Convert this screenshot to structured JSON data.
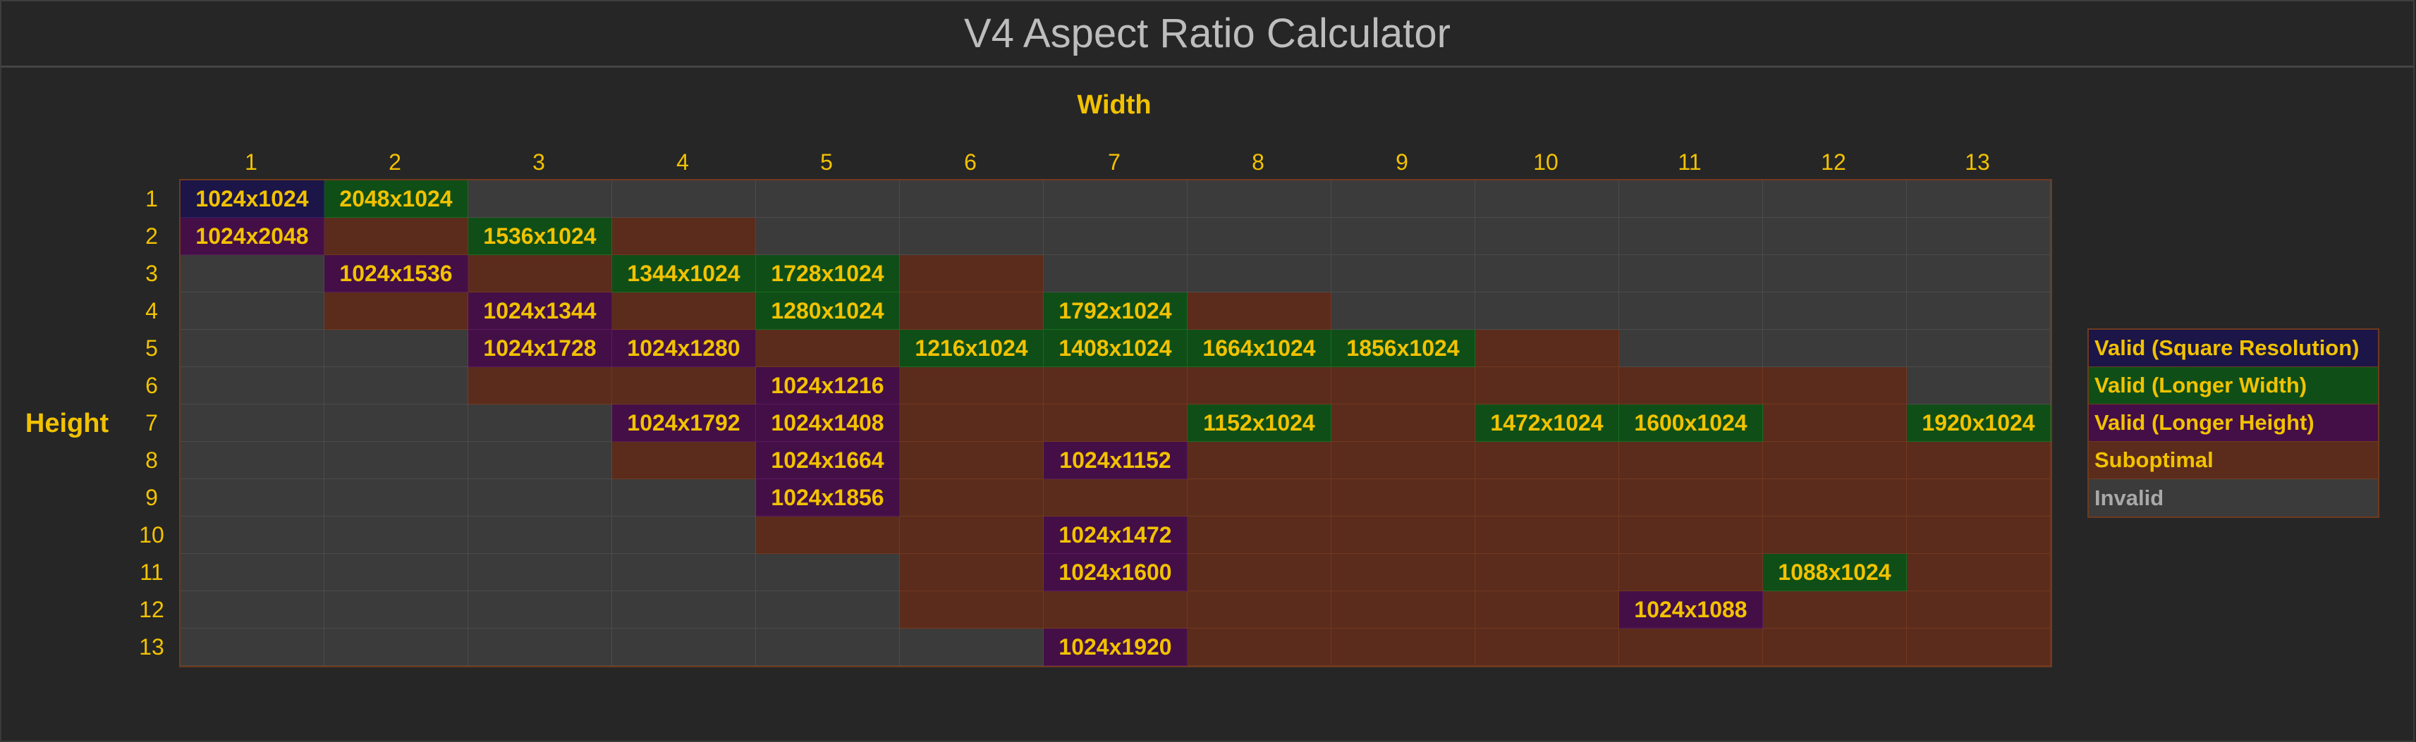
{
  "title": "V4 Aspect Ratio Calculator",
  "axis": {
    "width_label": "Width",
    "height_label": "Height"
  },
  "columns": [
    "1",
    "2",
    "3",
    "4",
    "5",
    "6",
    "7",
    "8",
    "9",
    "10",
    "11",
    "12",
    "13"
  ],
  "rows": [
    "1",
    "2",
    "3",
    "4",
    "5",
    "6",
    "7",
    "8",
    "9",
    "10",
    "11",
    "12",
    "13"
  ],
  "grid": [
    [
      [
        "sq",
        "1024x1024"
      ],
      [
        "lw",
        "2048x1024"
      ],
      [
        "iv",
        ""
      ],
      [
        "iv",
        ""
      ],
      [
        "iv",
        ""
      ],
      [
        "iv",
        ""
      ],
      [
        "iv",
        ""
      ],
      [
        "iv",
        ""
      ],
      [
        "iv",
        ""
      ],
      [
        "iv",
        ""
      ],
      [
        "iv",
        ""
      ],
      [
        "iv",
        ""
      ],
      [
        "iv",
        ""
      ]
    ],
    [
      [
        "lh",
        "1024x2048"
      ],
      [
        "so",
        ""
      ],
      [
        "lw",
        "1536x1024"
      ],
      [
        "so",
        ""
      ],
      [
        "iv",
        ""
      ],
      [
        "iv",
        ""
      ],
      [
        "iv",
        ""
      ],
      [
        "iv",
        ""
      ],
      [
        "iv",
        ""
      ],
      [
        "iv",
        ""
      ],
      [
        "iv",
        ""
      ],
      [
        "iv",
        ""
      ],
      [
        "iv",
        ""
      ]
    ],
    [
      [
        "iv",
        ""
      ],
      [
        "lh",
        "1024x1536"
      ],
      [
        "so",
        ""
      ],
      [
        "lw",
        "1344x1024"
      ],
      [
        "lw",
        "1728x1024"
      ],
      [
        "so",
        ""
      ],
      [
        "iv",
        ""
      ],
      [
        "iv",
        ""
      ],
      [
        "iv",
        ""
      ],
      [
        "iv",
        ""
      ],
      [
        "iv",
        ""
      ],
      [
        "iv",
        ""
      ],
      [
        "iv",
        ""
      ]
    ],
    [
      [
        "iv",
        ""
      ],
      [
        "so",
        ""
      ],
      [
        "lh",
        "1024x1344"
      ],
      [
        "so",
        ""
      ],
      [
        "lw",
        "1280x1024"
      ],
      [
        "so",
        ""
      ],
      [
        "lw",
        "1792x1024"
      ],
      [
        "so",
        ""
      ],
      [
        "iv",
        ""
      ],
      [
        "iv",
        ""
      ],
      [
        "iv",
        ""
      ],
      [
        "iv",
        ""
      ],
      [
        "iv",
        ""
      ]
    ],
    [
      [
        "iv",
        ""
      ],
      [
        "iv",
        ""
      ],
      [
        "lh",
        "1024x1728"
      ],
      [
        "lh",
        "1024x1280"
      ],
      [
        "so",
        ""
      ],
      [
        "lw",
        "1216x1024"
      ],
      [
        "lw",
        "1408x1024"
      ],
      [
        "lw",
        "1664x1024"
      ],
      [
        "lw",
        "1856x1024"
      ],
      [
        "so",
        ""
      ],
      [
        "iv",
        ""
      ],
      [
        "iv",
        ""
      ],
      [
        "iv",
        ""
      ]
    ],
    [
      [
        "iv",
        ""
      ],
      [
        "iv",
        ""
      ],
      [
        "so",
        ""
      ],
      [
        "so",
        ""
      ],
      [
        "lh",
        "1024x1216"
      ],
      [
        "so",
        ""
      ],
      [
        "so",
        ""
      ],
      [
        "so",
        ""
      ],
      [
        "so",
        ""
      ],
      [
        "so",
        ""
      ],
      [
        "so",
        ""
      ],
      [
        "so",
        ""
      ],
      [
        "iv",
        ""
      ]
    ],
    [
      [
        "iv",
        ""
      ],
      [
        "iv",
        ""
      ],
      [
        "iv",
        ""
      ],
      [
        "lh",
        "1024x1792"
      ],
      [
        "lh",
        "1024x1408"
      ],
      [
        "so",
        ""
      ],
      [
        "so",
        ""
      ],
      [
        "lw",
        "1152x1024"
      ],
      [
        "so",
        ""
      ],
      [
        "lw",
        "1472x1024"
      ],
      [
        "lw",
        "1600x1024"
      ],
      [
        "so",
        ""
      ],
      [
        "lw",
        "1920x1024"
      ]
    ],
    [
      [
        "iv",
        ""
      ],
      [
        "iv",
        ""
      ],
      [
        "iv",
        ""
      ],
      [
        "so",
        ""
      ],
      [
        "lh",
        "1024x1664"
      ],
      [
        "so",
        ""
      ],
      [
        "lh",
        "1024x1152"
      ],
      [
        "so",
        ""
      ],
      [
        "so",
        ""
      ],
      [
        "so",
        ""
      ],
      [
        "so",
        ""
      ],
      [
        "so",
        ""
      ],
      [
        "so",
        ""
      ]
    ],
    [
      [
        "iv",
        ""
      ],
      [
        "iv",
        ""
      ],
      [
        "iv",
        ""
      ],
      [
        "iv",
        ""
      ],
      [
        "lh",
        "1024x1856"
      ],
      [
        "so",
        ""
      ],
      [
        "so",
        ""
      ],
      [
        "so",
        ""
      ],
      [
        "so",
        ""
      ],
      [
        "so",
        ""
      ],
      [
        "so",
        ""
      ],
      [
        "so",
        ""
      ],
      [
        "so",
        ""
      ]
    ],
    [
      [
        "iv",
        ""
      ],
      [
        "iv",
        ""
      ],
      [
        "iv",
        ""
      ],
      [
        "iv",
        ""
      ],
      [
        "so",
        ""
      ],
      [
        "so",
        ""
      ],
      [
        "lh",
        "1024x1472"
      ],
      [
        "so",
        ""
      ],
      [
        "so",
        ""
      ],
      [
        "so",
        ""
      ],
      [
        "so",
        ""
      ],
      [
        "so",
        ""
      ],
      [
        "so",
        ""
      ]
    ],
    [
      [
        "iv",
        ""
      ],
      [
        "iv",
        ""
      ],
      [
        "iv",
        ""
      ],
      [
        "iv",
        ""
      ],
      [
        "iv",
        ""
      ],
      [
        "so",
        ""
      ],
      [
        "lh",
        "1024x1600"
      ],
      [
        "so",
        ""
      ],
      [
        "so",
        ""
      ],
      [
        "so",
        ""
      ],
      [
        "so",
        ""
      ],
      [
        "lw",
        "1088x1024"
      ],
      [
        "so",
        ""
      ]
    ],
    [
      [
        "iv",
        ""
      ],
      [
        "iv",
        ""
      ],
      [
        "iv",
        ""
      ],
      [
        "iv",
        ""
      ],
      [
        "iv",
        ""
      ],
      [
        "so",
        ""
      ],
      [
        "so",
        ""
      ],
      [
        "so",
        ""
      ],
      [
        "so",
        ""
      ],
      [
        "so",
        ""
      ],
      [
        "lh",
        "1024x1088"
      ],
      [
        "so",
        ""
      ],
      [
        "so",
        ""
      ]
    ],
    [
      [
        "iv",
        ""
      ],
      [
        "iv",
        ""
      ],
      [
        "iv",
        ""
      ],
      [
        "iv",
        ""
      ],
      [
        "iv",
        ""
      ],
      [
        "iv",
        ""
      ],
      [
        "lh",
        "1024x1920"
      ],
      [
        "so",
        ""
      ],
      [
        "so",
        ""
      ],
      [
        "so",
        ""
      ],
      [
        "so",
        ""
      ],
      [
        "so",
        ""
      ],
      [
        "so",
        ""
      ]
    ]
  ],
  "legend": [
    {
      "key": "sq",
      "label": "Valid (Square Resolution)"
    },
    {
      "key": "lw",
      "label": "Valid (Longer Width)"
    },
    {
      "key": "lh",
      "label": "Valid (Longer Height)"
    },
    {
      "key": "so",
      "label": "Suboptimal"
    },
    {
      "key": "iv",
      "label": "Invalid"
    }
  ],
  "colors": {
    "accent_text": "#f2c200",
    "square": "#1b1548",
    "longer_width": "#0f4f17",
    "longer_height": "#440f47",
    "suboptimal": "#5b2c1c",
    "invalid": "#3c3b3b"
  }
}
